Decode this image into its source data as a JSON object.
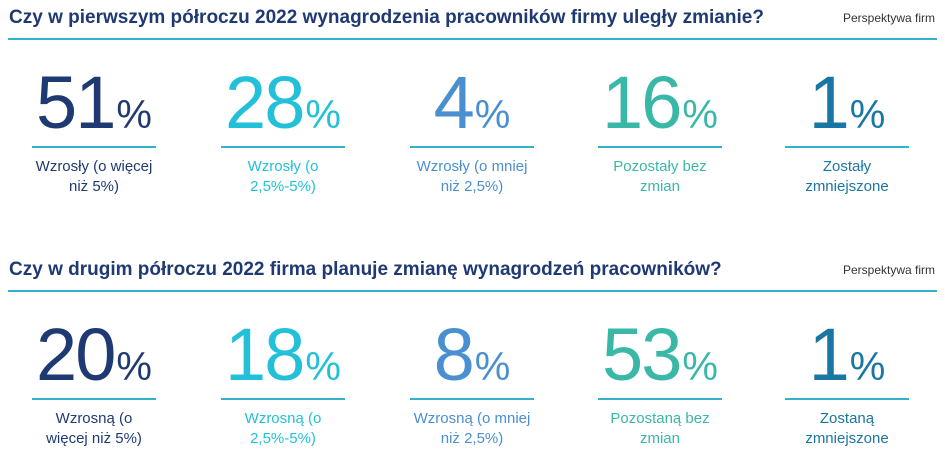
{
  "colors": {
    "title": "#1f3a73",
    "rule": "#32b3cd",
    "source": "#333333"
  },
  "chart_data": [
    {
      "type": "table",
      "title": "Czy w pierwszym półroczu 2022 wynagrodzenia pracowników firmy uległy zmianie?",
      "source": "Perspektywa firm",
      "unit": "%",
      "categories": [
        "Wzrosły (o więcej niż 5%)",
        "Wzrosły (o 2,5%-5%)",
        "Wzrosły (o mniej niż 2,5%)",
        "Pozostały bez zmian",
        "Zostały zmniejszone"
      ],
      "values": [
        51,
        28,
        4,
        16,
        1
      ],
      "colors": [
        "#1f3a73",
        "#22c1d9",
        "#4a8fd0",
        "#39b8a8",
        "#1a76a2"
      ]
    },
    {
      "type": "table",
      "title": "Czy w drugim półroczu 2022 firma planuje zmianę wynagrodzeń pracowników?",
      "source": "Perspektywa firm",
      "unit": "%",
      "categories": [
        "Wzrosną (o więcej niż 5%)",
        "Wzrosną (o 2,5%-5%)",
        "Wzrosną (o mniej niż 2,5%)",
        "Pozostaną bez zmian",
        "Zostaną zmniejszone"
      ],
      "values": [
        20,
        18,
        8,
        53,
        1
      ],
      "colors": [
        "#1f3a73",
        "#22c1d9",
        "#4a8fd0",
        "#39b8a8",
        "#1a76a2"
      ]
    }
  ]
}
